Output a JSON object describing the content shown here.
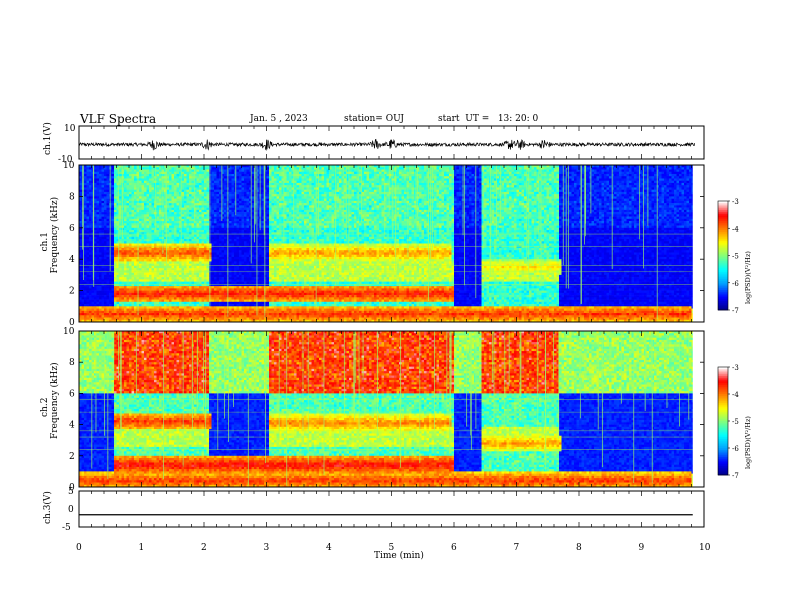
{
  "header": {
    "title": "VLF Spectra",
    "date": "Jan. 5 , 2023",
    "station": "station= OUJ",
    "start": "start  UT =   13: 20: 0"
  },
  "chart_data": [
    {
      "type": "line",
      "name": "waveform-ch1",
      "ylabel": "ch.1(V)",
      "ytick_labels": [
        "10",
        "-10"
      ],
      "ylim": [
        -10,
        10
      ],
      "xlim": [
        0,
        10
      ],
      "description_values": {
        "baseline": 0,
        "typical_amplitude": 2,
        "burst_amplitude": 6
      }
    },
    {
      "type": "heatmap",
      "name": "spectrogram-ch1",
      "ylabel_channel": "ch.1",
      "ylabel": "Frequency (kHz)",
      "yticks": [
        0,
        2,
        4,
        6,
        8,
        10
      ],
      "ytick_labels": [
        "0",
        "2",
        "4",
        "6",
        "8",
        "10"
      ],
      "ylim": [
        0,
        10
      ],
      "xlim": [
        0,
        10
      ],
      "colorbar": {
        "label": "log(PSD)(V²/Hz)",
        "ticks": [
          -3,
          -4,
          -5,
          -6,
          -7
        ],
        "tick_labels": [
          "-3",
          "-4",
          "-5",
          "-6",
          "-7"
        ],
        "range": [
          -7,
          -3
        ]
      },
      "bands": [
        {
          "t_start": 0.55,
          "t_end": 2.1,
          "f_center": 4.4,
          "level": -3.6
        },
        {
          "t_start": 3.05,
          "t_end": 5.95,
          "f_center": 4.4,
          "level": -3.9
        },
        {
          "t_start": 0.55,
          "t_end": 6.0,
          "f_center": 1.8,
          "level": -3.4
        },
        {
          "t_start": 6.45,
          "t_end": 7.7,
          "f_center": 3.5,
          "level": -4.2
        },
        {
          "t_start": 0.0,
          "t_end": 9.8,
          "f_center": 0.5,
          "level": -3.5
        }
      ]
    },
    {
      "type": "heatmap",
      "name": "spectrogram-ch2",
      "ylabel_channel": "ch.2",
      "ylabel": "Frequency (kHz)",
      "yticks": [
        0,
        2,
        4,
        6,
        8,
        10
      ],
      "ytick_labels": [
        "0",
        "2",
        "4",
        "6",
        "8",
        "10"
      ],
      "ylim": [
        0,
        10
      ],
      "xlim": [
        0,
        10
      ],
      "colorbar": {
        "label": "log(PSD)(V²/Hz)",
        "ticks": [
          -3,
          -4,
          -5,
          -6,
          -7
        ],
        "tick_labels": [
          "-3",
          "-4",
          "-5",
          "-6",
          "-7"
        ],
        "range": [
          -7,
          -3
        ]
      },
      "bands": [
        {
          "t_start": 0.55,
          "t_end": 2.1,
          "f_center": 4.2,
          "level": -3.5
        },
        {
          "t_start": 3.05,
          "t_end": 5.95,
          "f_center": 4.1,
          "level": -3.8
        },
        {
          "t_start": 0.55,
          "t_end": 6.0,
          "f_center": 1.4,
          "level": -3.3
        },
        {
          "t_start": 6.45,
          "t_end": 7.7,
          "f_center": 2.8,
          "level": -3.9
        },
        {
          "t_start": 0.0,
          "t_end": 9.8,
          "f_center": 0.4,
          "level": -3.5
        }
      ]
    },
    {
      "type": "line",
      "name": "waveform-ch3",
      "ylabel": "ch.3(V)",
      "ytick_labels": [
        "5",
        "0",
        "-5"
      ],
      "ylim": [
        -5,
        5
      ],
      "xlim": [
        0,
        10
      ],
      "constant_value": -1.6
    }
  ],
  "xaxis": {
    "label": "Time (min)",
    "ticks": [
      0,
      1,
      2,
      3,
      4,
      5,
      6,
      7,
      8,
      9,
      10
    ],
    "tick_labels": [
      "0",
      "1",
      "2",
      "3",
      "4",
      "5",
      "6",
      "7",
      "8",
      "9",
      "10"
    ]
  },
  "colors": {
    "colormap": [
      "#00007f",
      "#0000ff",
      "#00a0ff",
      "#00ffff",
      "#7fff7f",
      "#ffff00",
      "#ff7f00",
      "#ff0000",
      "#ffffff"
    ]
  }
}
